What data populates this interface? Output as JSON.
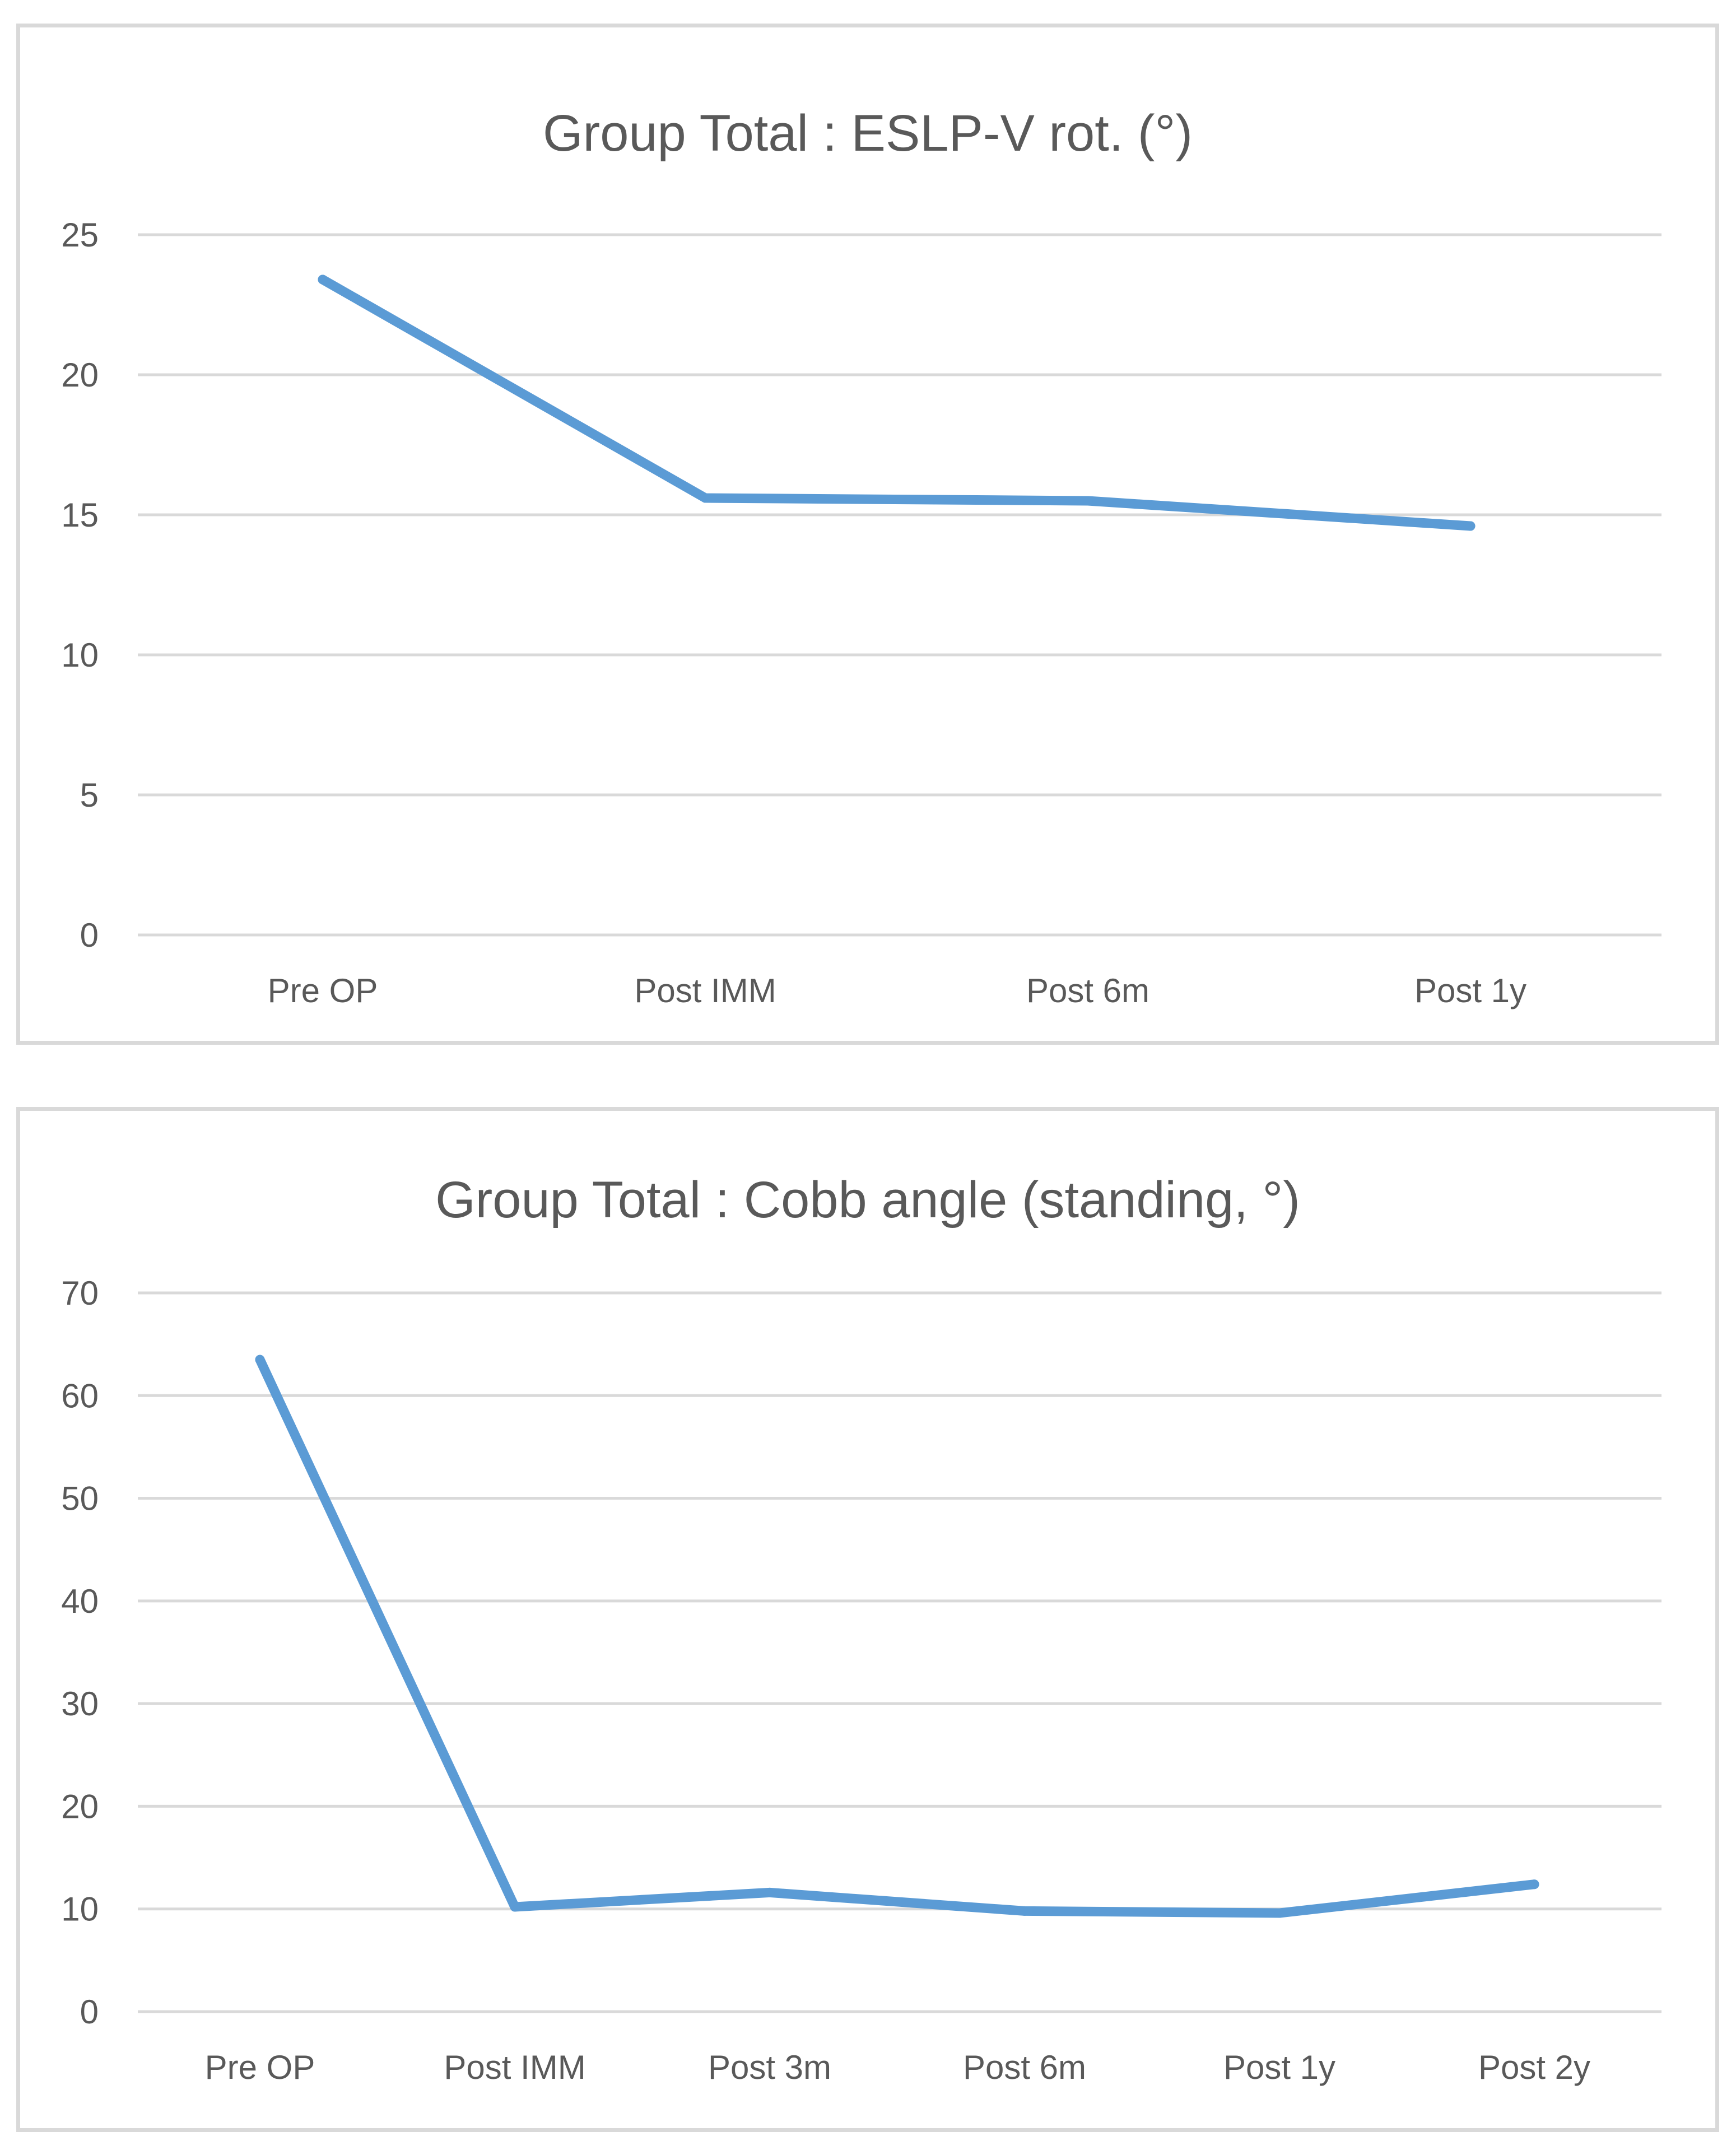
{
  "chart_data": [
    {
      "type": "line",
      "title": "Group Total : ESLP-V rot. (°)",
      "xlabel": "",
      "ylabel": "",
      "categories": [
        "Pre OP",
        "Post IMM",
        "Post 6m",
        "Post 1y"
      ],
      "series": [
        {
          "values": [
            23.4,
            15.6,
            15.5,
            14.6
          ],
          "color": "#5b9bd5"
        }
      ],
      "ylim": [
        0,
        25
      ],
      "yticks": [
        0,
        5,
        10,
        15,
        20,
        25
      ],
      "grid": true,
      "legend": "none"
    },
    {
      "type": "line",
      "title": "Group Total : Cobb angle (standing, °)",
      "xlabel": "",
      "ylabel": "",
      "categories": [
        "Pre OP",
        "Post IMM",
        "Post 3m",
        "Post 6m",
        "Post 1y",
        "Post 2y"
      ],
      "series": [
        {
          "values": [
            63.5,
            10.2,
            11.6,
            9.8,
            9.6,
            12.4
          ],
          "color": "#5b9bd5"
        }
      ],
      "ylim": [
        0,
        70
      ],
      "yticks": [
        0,
        10,
        20,
        30,
        40,
        50,
        60,
        70
      ],
      "grid": true,
      "legend": "none"
    }
  ]
}
